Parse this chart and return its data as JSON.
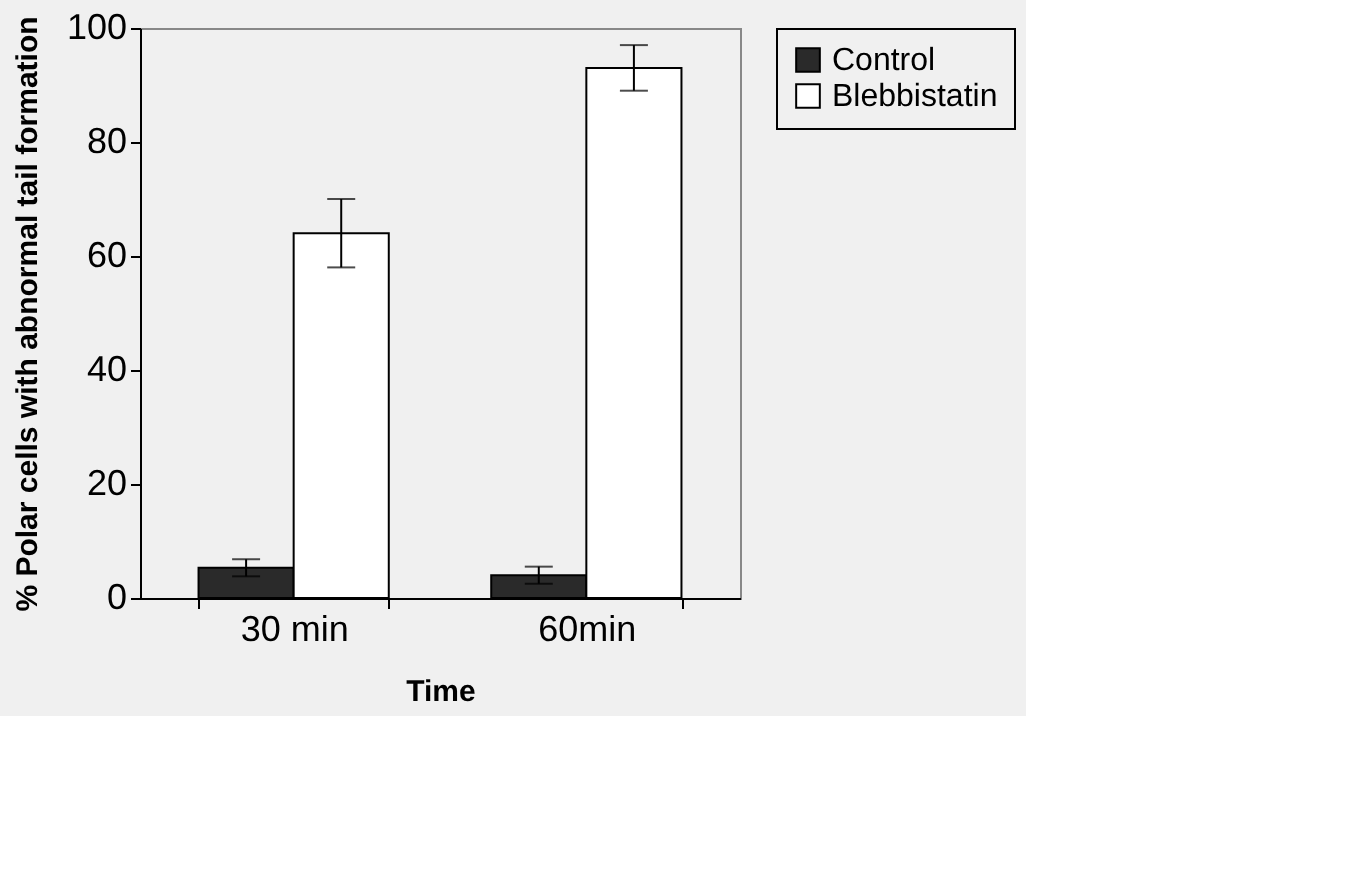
{
  "chart_data": {
    "type": "bar",
    "xlabel": "Time",
    "ylabel": "% Polar cells with abnormal tail formation",
    "categories": [
      "30 min",
      "60min"
    ],
    "series": [
      {
        "name": "Control",
        "color": "#2a2a2a",
        "values": [
          5.3,
          4
        ],
        "errors": [
          1.5,
          1.5
        ]
      },
      {
        "name": "Blebbistatin",
        "color": "#ffffff",
        "values": [
          64,
          93
        ],
        "errors": [
          6,
          4
        ]
      }
    ],
    "ylim": [
      0,
      100
    ],
    "yticks": [
      0,
      20,
      40,
      60,
      80,
      100
    ],
    "grid": false,
    "legend": "right"
  }
}
